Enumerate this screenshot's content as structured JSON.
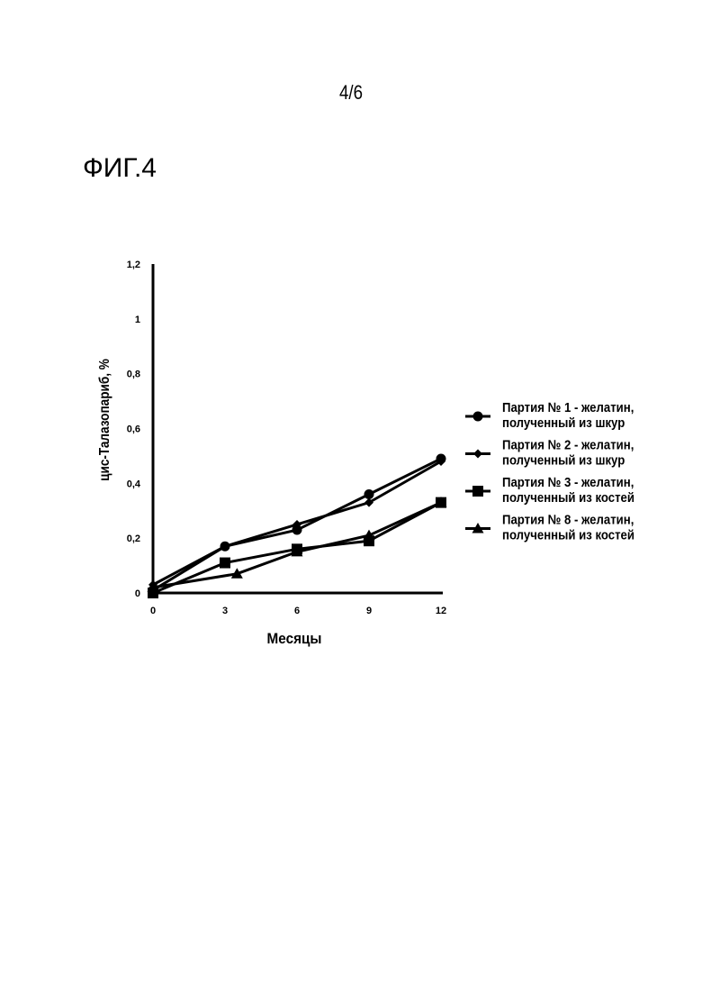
{
  "page": {
    "page_number": "4/6",
    "figure_label": "ФИГ.4"
  },
  "chart_data": {
    "type": "line",
    "title": "",
    "xlabel": "Месяцы",
    "ylabel": "цис-Талазопариб, %",
    "x": [
      0,
      3,
      6,
      9,
      12
    ],
    "x_tick_labels": [
      "0",
      "3",
      "6",
      "9",
      "12"
    ],
    "y_ticks": [
      0,
      0.2,
      0.4,
      0.6,
      0.8,
      1,
      1.2
    ],
    "y_tick_labels": [
      "0",
      "0,2",
      "0,4",
      "0,6",
      "0,8",
      "1",
      "1,2"
    ],
    "xlim": [
      0,
      12
    ],
    "ylim": [
      0,
      1.2
    ],
    "grid": false,
    "legend_position": "right",
    "series": [
      {
        "name_line1": "Партия № 1 - желатин,",
        "name_line2": "полученный из шкур",
        "marker": "circle",
        "points": [
          [
            0,
            0.01
          ],
          [
            3,
            0.17
          ],
          [
            6,
            0.23
          ],
          [
            9,
            0.36
          ],
          [
            12,
            0.49
          ]
        ]
      },
      {
        "name_line1": "Партия № 2 - желатин,",
        "name_line2": "полученный из шкур",
        "marker": "diamond",
        "points": [
          [
            0,
            0.03
          ],
          [
            3,
            0.17
          ],
          [
            6,
            0.25
          ],
          [
            9,
            0.33
          ],
          [
            12,
            0.48
          ]
        ]
      },
      {
        "name_line1": "Партия № 3 - желатин,",
        "name_line2": "полученный из костей",
        "marker": "square",
        "points": [
          [
            0,
            0.0
          ],
          [
            3,
            0.11
          ],
          [
            6,
            0.16
          ],
          [
            9,
            0.19
          ],
          [
            12,
            0.33
          ]
        ]
      },
      {
        "name_line1": "Партия № 8 - желатин,",
        "name_line2": "полученный из костей",
        "marker": "triangle",
        "points": [
          [
            0,
            0.02
          ],
          [
            3.5,
            0.07
          ],
          [
            6,
            0.15
          ],
          [
            9,
            0.21
          ],
          [
            12,
            0.33
          ]
        ]
      }
    ],
    "line_color": "#000000"
  }
}
